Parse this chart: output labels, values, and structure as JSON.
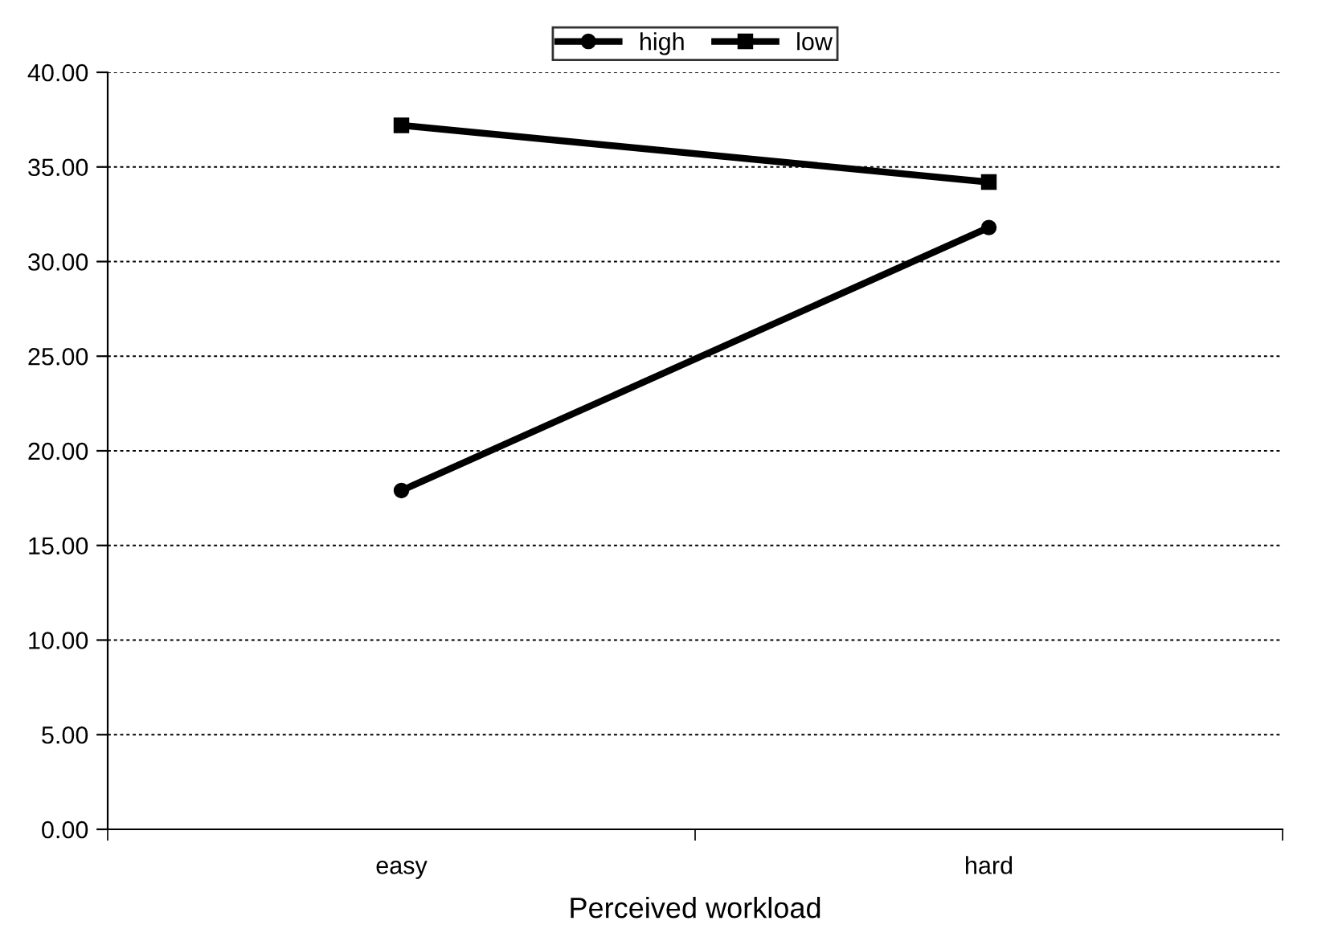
{
  "chart_data": {
    "type": "line",
    "xlabel": "Perceived workload",
    "categories": [
      "easy",
      "hard"
    ],
    "series": [
      {
        "name": "high",
        "color": "#000000",
        "marker": "circle",
        "values": [
          17.9,
          31.8
        ]
      },
      {
        "name": "low",
        "color": "#000000",
        "marker": "square",
        "values": [
          37.2,
          34.2
        ]
      }
    ],
    "ylim": [
      0,
      40
    ],
    "yticks": [
      {
        "value": 0,
        "label": "0.00"
      },
      {
        "value": 5,
        "label": "5.00"
      },
      {
        "value": 10,
        "label": "10.00"
      },
      {
        "value": 15,
        "label": "15.00"
      },
      {
        "value": 20,
        "label": "20.00"
      },
      {
        "value": 25,
        "label": "25.00"
      },
      {
        "value": 30,
        "label": "30.00"
      },
      {
        "value": 35,
        "label": "35.00"
      },
      {
        "value": 40,
        "label": "40.00"
      }
    ],
    "grid": "y",
    "legend": "top",
    "line_style": "solid"
  }
}
